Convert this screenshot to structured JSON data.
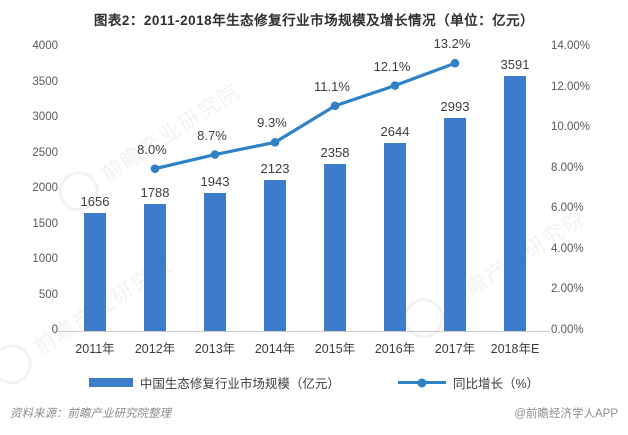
{
  "title": "图表2：2011-2018年生态修复行业市场规模及增长情况（单位：亿元）",
  "chart_data": {
    "type": "bar+line",
    "title": "图表2：2011-2018年生态修复行业市场规模及增长情况（单位：亿元）",
    "categories": [
      "2011年",
      "2012年",
      "2013年",
      "2014年",
      "2015年",
      "2016年",
      "2017年",
      "2018年E"
    ],
    "series": [
      {
        "name": "中国生态修复行业市场规模（亿元）",
        "type": "bar",
        "axis": "left",
        "color": "#3d7cca",
        "values": [
          1656,
          1788,
          1943,
          2123,
          2358,
          2644,
          2993,
          3591
        ]
      },
      {
        "name": "同比增长（%）",
        "type": "line",
        "axis": "right",
        "color": "#2e82c5",
        "values": [
          null,
          8.0,
          8.7,
          9.3,
          11.1,
          12.1,
          13.2,
          null
        ],
        "labels": [
          null,
          "8.0%",
          "8.7%",
          "9.3%",
          "11.1%",
          "12.1%",
          "13.2%",
          null
        ]
      }
    ],
    "left_axis": {
      "min": 0,
      "max": 4000,
      "ticks": [
        "0",
        "500",
        "1000",
        "1500",
        "2000",
        "2500",
        "3000",
        "3500",
        "4000"
      ]
    },
    "right_axis": {
      "min": 0,
      "max": 14,
      "ticks": [
        "0.00%",
        "2.00%",
        "4.00%",
        "6.00%",
        "8.00%",
        "10.00%",
        "12.00%",
        "14.00%"
      ]
    },
    "grid": false,
    "legend_position": "bottom"
  },
  "legend": {
    "bar_label": "中国生态修复行业市场规模（亿元）",
    "line_label": "同比增长（%）"
  },
  "footer": {
    "source": "资料来源：前瞻产业研究院整理",
    "credit": "@前瞻经济学人APP"
  },
  "watermark": {
    "text": "前瞻产业研究院"
  }
}
